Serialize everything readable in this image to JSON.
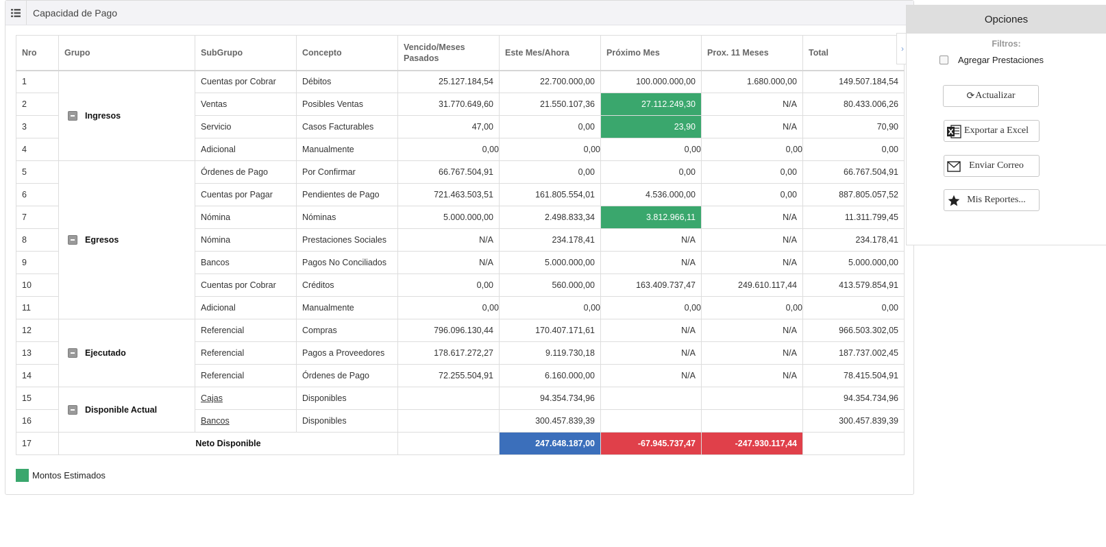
{
  "header": {
    "title": "Capacidad de Pago"
  },
  "table": {
    "columns": [
      "Nro",
      "Grupo",
      "SubGrupo",
      "Concepto",
      "Vencido/Meses Pasados",
      "Este Mes/Ahora",
      "Próximo Mes",
      "Prox. 11 Meses",
      "Total"
    ],
    "groups": [
      {
        "name": "Ingresos",
        "rows": [
          {
            "nro": "1",
            "subgrupo": "Cuentas por Cobrar",
            "concepto": "Débitos",
            "vencido": "25.127.184,54",
            "este_mes": "22.700.000,00",
            "proximo": "100.000.000,00",
            "prox11": "1.680.000,00",
            "total": "149.507.184,54"
          },
          {
            "nro": "2",
            "subgrupo": "Ventas",
            "concepto": "Posibles Ventas",
            "vencido": "31.770.649,60",
            "este_mes": "21.550.107,36",
            "proximo": "27.112.249,30",
            "prox11": "N/A",
            "total": "80.433.006,26"
          },
          {
            "nro": "3",
            "subgrupo": "Servicio",
            "concepto": "Casos Facturables",
            "vencido": "47,00",
            "este_mes": "0,00",
            "proximo": "23,90",
            "prox11": "N/A",
            "total": "70,90"
          },
          {
            "nro": "4",
            "subgrupo": "Adicional",
            "concepto": "Manualmente",
            "vencido": "0,00",
            "este_mes": "0,00",
            "proximo": "0,00",
            "prox11": "0,00",
            "total": "0,00"
          }
        ]
      },
      {
        "name": "Egresos",
        "rows": [
          {
            "nro": "5",
            "subgrupo": "Órdenes de Pago",
            "concepto": "Por Confirmar",
            "vencido": "66.767.504,91",
            "este_mes": "0,00",
            "proximo": "0,00",
            "prox11": "0,00",
            "total": "66.767.504,91"
          },
          {
            "nro": "6",
            "subgrupo": "Cuentas por Pagar",
            "concepto": "Pendientes de Pago",
            "vencido": "721.463.503,51",
            "este_mes": "161.805.554,01",
            "proximo": "4.536.000,00",
            "prox11": "0,00",
            "total": "887.805.057,52"
          },
          {
            "nro": "7",
            "subgrupo": "Nómina",
            "concepto": "Nóminas",
            "vencido": "5.000.000,00",
            "este_mes": "2.498.833,34",
            "proximo": "3.812.966,11",
            "prox11": "N/A",
            "total": "11.311.799,45"
          },
          {
            "nro": "8",
            "subgrupo": "Nómina",
            "concepto": "Prestaciones Sociales",
            "vencido": "N/A",
            "este_mes": "234.178,41",
            "proximo": "N/A",
            "prox11": "N/A",
            "total": "234.178,41"
          },
          {
            "nro": "9",
            "subgrupo": "Bancos",
            "concepto": "Pagos No Conciliados",
            "vencido": "N/A",
            "este_mes": "5.000.000,00",
            "proximo": "N/A",
            "prox11": "N/A",
            "total": "5.000.000,00"
          },
          {
            "nro": "10",
            "subgrupo": "Cuentas por Cobrar",
            "concepto": "Créditos",
            "vencido": "0,00",
            "este_mes": "560.000,00",
            "proximo": "163.409.737,47",
            "prox11": "249.610.117,44",
            "total": "413.579.854,91"
          },
          {
            "nro": "11",
            "subgrupo": "Adicional",
            "concepto": "Manualmente",
            "vencido": "0,00",
            "este_mes": "0,00",
            "proximo": "0,00",
            "prox11": "0,00",
            "total": "0,00"
          }
        ]
      },
      {
        "name": "Ejecutado",
        "rows": [
          {
            "nro": "12",
            "subgrupo": "Referencial",
            "concepto": "Compras",
            "vencido": "796.096.130,44",
            "este_mes": "170.407.171,61",
            "proximo": "N/A",
            "prox11": "N/A",
            "total": "966.503.302,05"
          },
          {
            "nro": "13",
            "subgrupo": "Referencial",
            "concepto": "Pagos a Proveedores",
            "vencido": "178.617.272,27",
            "este_mes": "9.119.730,18",
            "proximo": "N/A",
            "prox11": "N/A",
            "total": "187.737.002,45"
          },
          {
            "nro": "14",
            "subgrupo": "Referencial",
            "concepto": "Órdenes de Pago",
            "vencido": "72.255.504,91",
            "este_mes": "6.160.000,00",
            "proximo": "N/A",
            "prox11": "N/A",
            "total": "78.415.504,91"
          }
        ]
      },
      {
        "name": "Disponible Actual",
        "rows": [
          {
            "nro": "15",
            "subgrupo": "Cajas",
            "concepto": "Disponibles",
            "vencido": "",
            "este_mes": "94.354.734,96",
            "proximo": "",
            "prox11": "",
            "total": "94.354.734,96"
          },
          {
            "nro": "16",
            "subgrupo": "Bancos",
            "concepto": "Disponibles",
            "vencido": "",
            "este_mes": "300.457.839,39",
            "proximo": "",
            "prox11": "",
            "total": "300.457.839,39"
          }
        ]
      }
    ],
    "net": {
      "nro": "17",
      "label": "Neto Disponible",
      "este_mes": "247.648.187,00",
      "proximo": "-67.945.737,47",
      "prox11": "-247.930.117,44"
    }
  },
  "legend": {
    "label": "Montos Estimados",
    "color": "#3aa76d"
  },
  "options": {
    "title": "Opciones",
    "filters_label": "Filtros:",
    "checkbox_label": "Agregar Prestaciones",
    "buttons": {
      "actualizar": "Actualizar",
      "exportar": "Exportar a Excel",
      "correo": "Enviar Correo",
      "reportes": "Mis Reportes..."
    }
  },
  "colors": {
    "estimated": "#3aa76d",
    "positive_net": "#3b6fbb",
    "negative_net": "#e0404a"
  }
}
